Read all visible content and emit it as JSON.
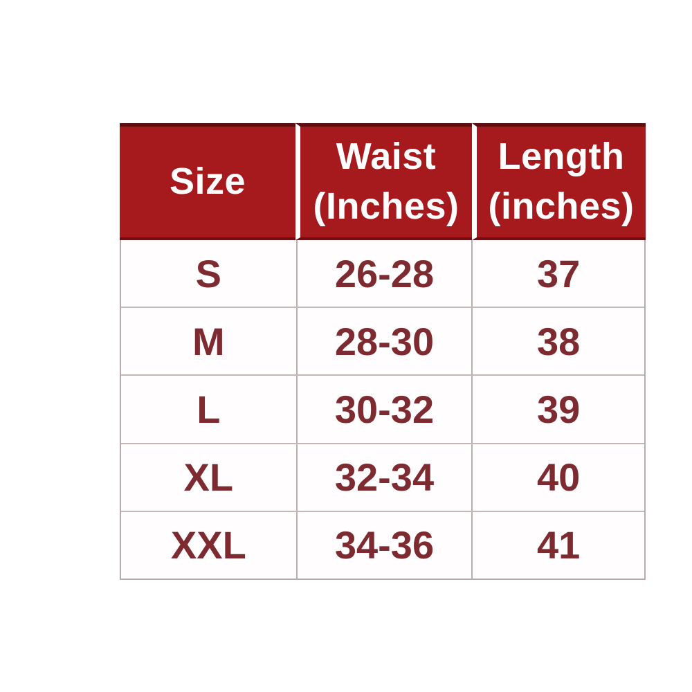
{
  "table": {
    "header": [
      {
        "line1": "Size",
        "line2": ""
      },
      {
        "line1": "Waist",
        "line2": "(Inches)"
      },
      {
        "line1": "Length",
        "line2": "(inches)"
      }
    ],
    "rows": [
      {
        "size": "S",
        "waist": "26-28",
        "length": "37"
      },
      {
        "size": "M",
        "waist": "28-30",
        "length": "38"
      },
      {
        "size": "L",
        "waist": "30-32",
        "length": "39"
      },
      {
        "size": "XL",
        "waist": "32-34",
        "length": "40"
      },
      {
        "size": "XXL",
        "waist": "34-36",
        "length": "41"
      }
    ]
  },
  "colors": {
    "header_background": "#a6191c",
    "header_dark_edge": "#5f0d0f",
    "header_text": "#ffffff",
    "body_text": "#7d2b30",
    "grid_line": "#c0b1b1",
    "page_background": "#ffffff"
  },
  "chart_data": {
    "type": "table",
    "title": "",
    "columns": [
      "Size",
      "Waist (Inches)",
      "Length (inches)"
    ],
    "rows": [
      [
        "S",
        "26-28",
        "37"
      ],
      [
        "M",
        "28-30",
        "38"
      ],
      [
        "L",
        "30-32",
        "39"
      ],
      [
        "XL",
        "32-34",
        "40"
      ],
      [
        "XXL",
        "34-36",
        "41"
      ]
    ]
  }
}
